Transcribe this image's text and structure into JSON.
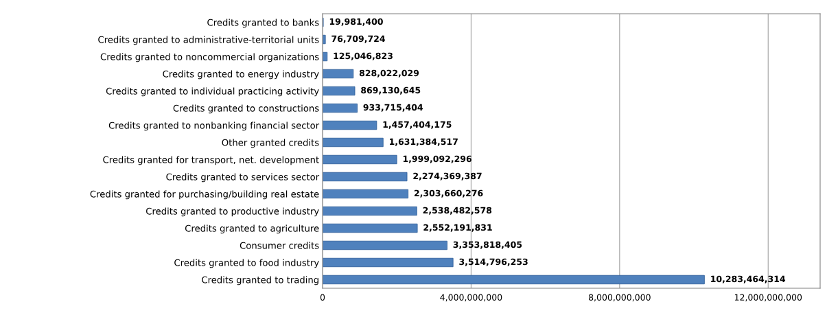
{
  "chart_data": {
    "type": "bar",
    "orientation": "horizontal",
    "categories": [
      "Credits granted to banks",
      "Credits granted to administrative-territorial units",
      "Credits granted to noncommercial organizations",
      "Credits granted to energy industry",
      "Credits granted to individual practicing activity",
      "Credits granted to constructions",
      "Credits granted to nonbanking financial sector",
      "Other granted credits",
      "Credits granted for transport, net. development",
      "Credits granted to services sector",
      "Credits granted for purchasing/building real estate",
      "Credits granted to productive industry",
      "Credits granted to agriculture",
      "Consumer credits",
      "Credits granted to food industry",
      "Credits granted to trading"
    ],
    "values": [
      19981400,
      76709724,
      125046823,
      828022029,
      869130645,
      933715404,
      1457404175,
      1631384517,
      1999092296,
      2274369387,
      2303660276,
      2538482578,
      2552191831,
      3353818405,
      3514796253,
      10283464314
    ],
    "color": "#4f81bd",
    "value_labels": [
      "19,981,400",
      "76,709,724",
      "125,046,823",
      "828,022,029",
      "869,130,645",
      "933,715,404",
      "1,457,404,175",
      "1,631,384,517",
      "1,999,092,296",
      "2,274,369,387",
      "2,303,660,276",
      "2,538,482,578",
      "2,552,191,831",
      "3,353,818,405",
      "3,514,796,253",
      "10,283,464,314"
    ],
    "xlim": [
      0,
      13400000000
    ],
    "xticks": [
      0,
      {
        "value": 4000000000,
        "label": "4,000,000,000"
      },
      {
        "value": 8000000000,
        "label": "8,000,000,000"
      },
      {
        "value": 12000000000,
        "label": "12,000,000,000"
      }
    ],
    "grid": "x"
  }
}
